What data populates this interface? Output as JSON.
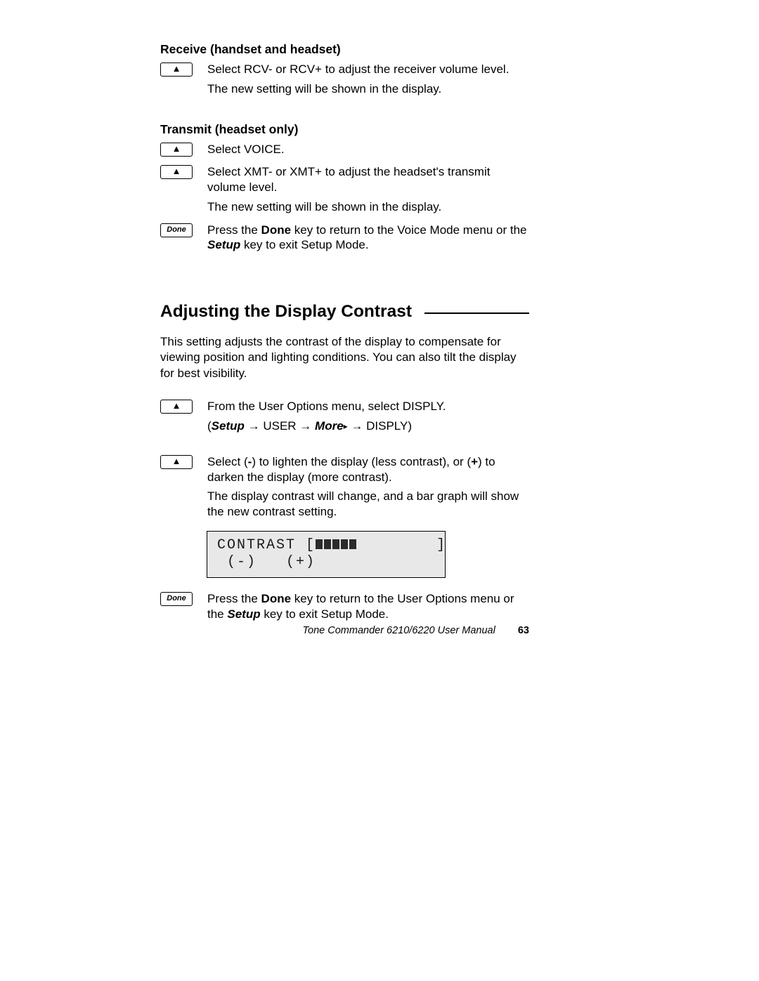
{
  "colors": {
    "text": "#000000",
    "page_bg": "#ffffff",
    "lcd_bg": "#e8e8e8",
    "lcd_border": "#000000",
    "bar_fill": "#2b2b2b",
    "key_border": "#000000"
  },
  "typography": {
    "body_family": "Arial, Helvetica, sans-serif",
    "body_size_pt": 13,
    "subhead_size_pt": 13,
    "subhead_weight": "bold",
    "heading_size_pt": 18,
    "heading_weight": "bold",
    "lcd_family": "Courier New, monospace",
    "lcd_size_pt": 15,
    "footer_size_pt": 11
  },
  "section1": {
    "heading": "Receive (handset and headset)",
    "steps": [
      {
        "key": "arrow",
        "lines": [
          "Select RCV- or RCV+ to adjust the receiver volume level.",
          "The new setting will be shown in the display."
        ]
      }
    ]
  },
  "section2": {
    "heading": "Transmit (headset only)",
    "steps": [
      {
        "key": "arrow",
        "lines": [
          "Select VOICE."
        ]
      },
      {
        "key": "arrow",
        "lines": [
          "Select XMT- or XMT+ to adjust the headset's transmit volume level.",
          "The new setting will be shown in the display."
        ]
      },
      {
        "key": "Done",
        "rich": [
          [
            "Press the ",
            {
              "b": "Done"
            },
            " key to return to the Voice Mode menu or the ",
            {
              "bi": "Setup"
            },
            " key to exit Setup Mode."
          ]
        ]
      }
    ]
  },
  "heading2": "Adjusting the Display Contrast",
  "intro": "This setting adjusts the contrast of the display to compensate for viewing position and lighting conditions. You can also tilt the display for best visibility.",
  "section3": {
    "steps": [
      {
        "key": "arrow",
        "rich": [
          [
            "From the User Options menu, select DISPLY."
          ],
          [
            "(",
            {
              "bi": "Setup"
            },
            " → USER → ",
            {
              "bi": "More"
            },
            {
              "tri": "▸"
            },
            " → DISPLY)"
          ]
        ]
      },
      {
        "key": "arrow",
        "rich": [
          [
            "Select (",
            {
              "b": "-"
            },
            ") to lighten the display (less contrast), or (",
            {
              "b": "+"
            },
            ") to darken the display (more contrast)."
          ],
          [
            "The display contrast will change, and a bar graph will show the new contrast setting."
          ]
        ]
      }
    ],
    "after_lcd_step": {
      "key": "Done",
      "rich": [
        [
          "Press the ",
          {
            "b": "Done"
          },
          " key to return to the User Options menu or the ",
          {
            "bi": "Setup"
          },
          " key to exit Setup Mode."
        ]
      ]
    }
  },
  "lcd": {
    "label": "CONTRAST",
    "bar_total_slots": 9,
    "bar_filled": 5,
    "row2": " (-)   (+)"
  },
  "footer": {
    "title": "Tone Commander 6210/6220 User Manual",
    "page": "63"
  }
}
